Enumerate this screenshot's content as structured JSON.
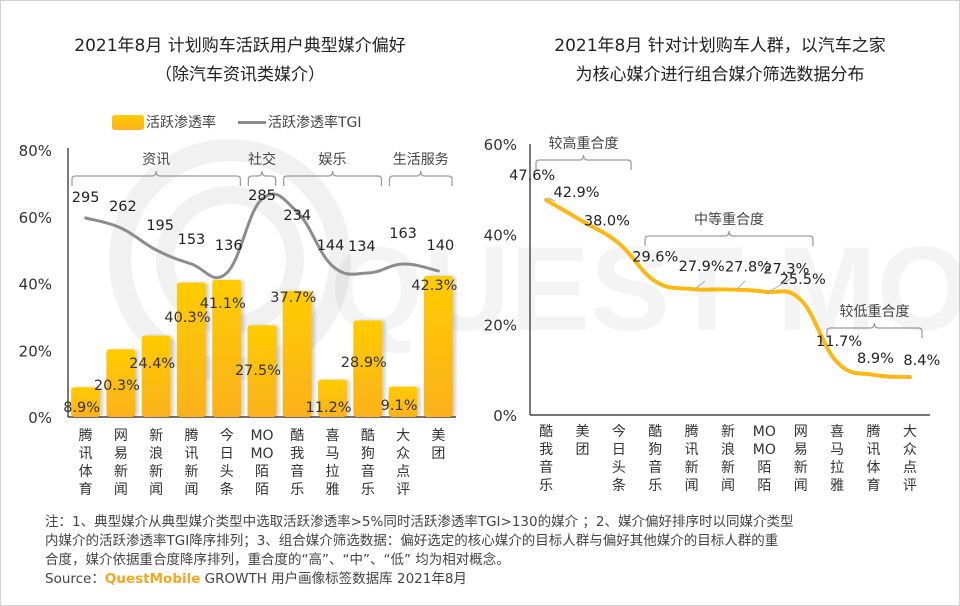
{
  "left_title": {
    "line1": "2021年8月 计划购车活跃用户典型媒介偏好",
    "line2": "（除汽车资讯类媒介）"
  },
  "right_title": {
    "line1": "2021年8月 针对计划购车人群，以汽车之家",
    "line2": "为核心媒介进行组合媒介筛选数据分布"
  },
  "legend": {
    "bar_label": "活跃渗透率",
    "line_label": "活跃渗透率TGI"
  },
  "colors": {
    "bar_top": "#ffcc00",
    "bar_bottom": "#fbb11c",
    "tgi_line": "#8c8c8c",
    "overlap_line": "#fdb813",
    "brand": "#f5a623"
  },
  "chart_data": [
    {
      "type": "bar",
      "title": "2021年8月 计划购车活跃用户典型媒介偏好（除汽车资讯类媒介）",
      "categories": [
        "腾讯体育",
        "网易新闻",
        "新浪新闻",
        "腾讯新闻",
        "今日头条",
        "MOMO陌陌",
        "酷我音乐",
        "喜马拉雅",
        "酷狗音乐",
        "大众点评",
        "美团"
      ],
      "category_labels": [
        [
          "腾",
          "讯",
          "体",
          "育"
        ],
        [
          "网",
          "易",
          "新",
          "闻"
        ],
        [
          "新",
          "浪",
          "新",
          "闻"
        ],
        [
          "腾",
          "讯",
          "新",
          "闻"
        ],
        [
          "今",
          "日",
          "头",
          "条"
        ],
        [
          "MO",
          "MO",
          "陌",
          "陌"
        ],
        [
          "酷",
          "我",
          "音",
          "乐"
        ],
        [
          "喜",
          "马",
          "拉",
          "雅"
        ],
        [
          "酷",
          "狗",
          "音",
          "乐"
        ],
        [
          "大",
          "众",
          "点",
          "评"
        ],
        [
          "美",
          "团"
        ]
      ],
      "series": [
        {
          "name": "活跃渗透率",
          "type": "bar",
          "values": [
            8.9,
            20.3,
            24.4,
            40.3,
            41.1,
            27.5,
            37.7,
            11.2,
            28.9,
            9.1,
            42.3
          ],
          "labels": [
            "8.9%",
            "20.3%",
            "24.4%",
            "40.3%",
            "41.1%",
            "27.5%",
            "37.7%",
            "11.2%",
            "28.9%",
            "9.1%",
            "42.3%"
          ]
        },
        {
          "name": "活跃渗透率TGI",
          "type": "line",
          "values": [
            295,
            262,
            195,
            153,
            136,
            285,
            234,
            144,
            134,
            163,
            140
          ],
          "labels": [
            "295",
            "262",
            "195",
            "153",
            "136",
            "285",
            "234",
            "144",
            "134",
            "163",
            "140"
          ]
        }
      ],
      "groups": [
        {
          "name": "资讯",
          "from": 0,
          "to": 4
        },
        {
          "name": "社交",
          "from": 5,
          "to": 5
        },
        {
          "name": "娱乐",
          "from": 6,
          "to": 8
        },
        {
          "name": "生活服务",
          "from": 9,
          "to": 10
        }
      ],
      "yticks": [
        "0%",
        "20%",
        "40%",
        "60%",
        "80%"
      ],
      "ylim": [
        0,
        80
      ],
      "legend_position": "top"
    },
    {
      "type": "line",
      "title": "2021年8月 针对计划购车人群，以汽车之家为核心媒介进行组合媒介筛选数据分布",
      "categories": [
        "酷我音乐",
        "美团",
        "今日头条",
        "酷狗音乐",
        "腾讯新闻",
        "新浪新闻",
        "MOMO陌陌",
        "网易新闻",
        "喜马拉雅",
        "腾讯体育",
        "大众点评"
      ],
      "category_labels": [
        [
          "酷",
          "我",
          "音",
          "乐"
        ],
        [
          "美",
          "团"
        ],
        [
          "今",
          "日",
          "头",
          "条"
        ],
        [
          "酷",
          "狗",
          "音",
          "乐"
        ],
        [
          "腾",
          "讯",
          "新",
          "闻"
        ],
        [
          "新",
          "浪",
          "新",
          "闻"
        ],
        [
          "MO",
          "MO",
          "陌",
          "陌"
        ],
        [
          "网",
          "易",
          "新",
          "闻"
        ],
        [
          "喜",
          "马",
          "拉",
          "雅"
        ],
        [
          "腾",
          "讯",
          "体",
          "育"
        ],
        [
          "大",
          "众",
          "点",
          "评"
        ]
      ],
      "values": [
        47.6,
        42.9,
        38.0,
        29.6,
        27.9,
        27.8,
        27.3,
        25.5,
        11.7,
        8.9,
        8.4
      ],
      "labels": [
        "47.6%",
        "42.9%",
        "38.0%",
        "29.6%",
        "27.9%",
        "27.8%",
        "27.3%",
        "25.5%",
        "11.7%",
        "8.9%",
        "8.4%"
      ],
      "groups": [
        {
          "name": "较高重合度",
          "from": 0,
          "to": 2
        },
        {
          "name": "中等重合度",
          "from": 3,
          "to": 7
        },
        {
          "name": "较低重合度",
          "from": 8,
          "to": 10
        }
      ],
      "yticks": [
        "0%",
        "20%",
        "40%",
        "60%"
      ],
      "ylim": [
        0,
        60
      ]
    }
  ],
  "note": {
    "lines": [
      "注：1、典型媒介从典型媒介类型中选取活跃渗透率>5%同时活跃渗透率TGI>130的媒介 ；2、媒介偏好排序时以同媒介类型",
      "内媒介的活跃渗透率TGI降序排列；3、组合媒介筛选数据：偏好选定的核心媒介的目标人群与偏好其他媒介的目标人群的重",
      "合度，媒介依据重合度降序排列，重合度的“高”、“中”、“低” 均为相对概念。"
    ],
    "source_prefix": "Source：",
    "source_brand": "QuestMobile",
    "source_rest": " GROWTH 用户画像标签数据库 2021年8月"
  }
}
